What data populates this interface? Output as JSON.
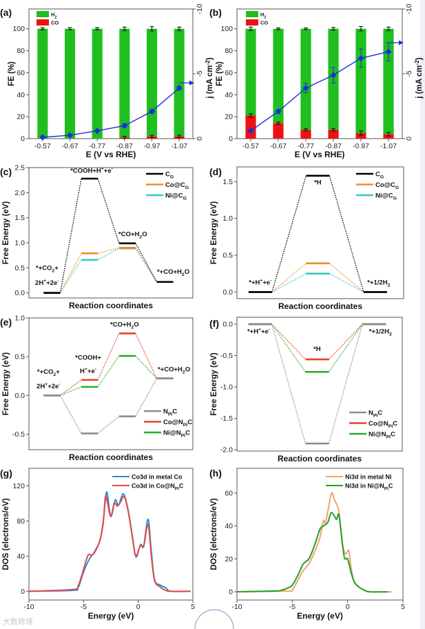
{
  "watermark": "大数跨境",
  "colors": {
    "h2_bar": "#1fbf1f",
    "co_bar": "#ee1111",
    "j_line": "#1a2fe0",
    "cg": "#000000",
    "co_cg": "#f28c28",
    "ni_cg": "#35c9bf",
    "npic": "#8c8c8c",
    "co_npic": "#e8412c",
    "ni_npic": "#22b022",
    "co_metal": "#1e90e0",
    "co_in": "#e84848",
    "ni_metal": "#f4a070",
    "ni_in": "#20a020"
  },
  "chart_data": [
    {
      "panel": "(a)",
      "type": "bar",
      "categories": [
        "-0.57",
        "-0.67",
        "-0.77",
        "-0.87",
        "-0.97",
        "-1.07"
      ],
      "series": [
        {
          "name": "H_{2}",
          "values": [
            100,
            100,
            100,
            99,
            98,
            98
          ],
          "error": [
            1,
            1,
            1,
            1.5,
            2,
            1.5
          ],
          "color_key": "h2_bar"
        },
        {
          "name": "CO",
          "values": [
            0,
            0,
            0,
            1,
            2,
            2
          ],
          "error": [
            0,
            0,
            0,
            1,
            1,
            1
          ],
          "color_key": "co_bar"
        }
      ],
      "line": {
        "name": "j",
        "values": [
          -0.1,
          -0.26,
          -0.6,
          -1.0,
          -2.1,
          -3.9
        ],
        "error": [
          0.1,
          0.1,
          0.1,
          0.15,
          0.15,
          0.15
        ],
        "color_key": "j_line"
      },
      "xlabel": "E (V vs RHE)",
      "ylabel": "FE (%)",
      "y2label": "j (mA cm^{-2})",
      "ylim": [
        0,
        118
      ],
      "yticks": [
        0,
        20,
        40,
        60,
        80,
        100
      ],
      "y2lim": [
        0,
        -10
      ],
      "y2ticks": [
        0,
        -5,
        -10
      ],
      "legend": "top-left"
    },
    {
      "panel": "(b)",
      "type": "bar",
      "categories": [
        "-0.57",
        "-0.67",
        "-0.77",
        "-0.87",
        "-0.97",
        "-1.07"
      ],
      "series": [
        {
          "name": "H_{2}",
          "values": [
            79,
            86,
            92,
            92,
            95,
            96
          ],
          "error": [
            1.5,
            0.8,
            0.8,
            1.2,
            2,
            1.5
          ],
          "color_key": "h2_bar"
        },
        {
          "name": "CO",
          "values": [
            21,
            14,
            8,
            8,
            5,
            4
          ],
          "error": [
            1.5,
            1,
            1,
            1,
            2,
            1.5
          ],
          "color_key": "co_bar"
        }
      ],
      "line": {
        "name": "j",
        "values": [
          -0.6,
          -2.1,
          -3.9,
          -4.9,
          -6.2,
          -6.7
        ],
        "error": [
          0.1,
          0.15,
          0.35,
          0.6,
          0.7,
          0.7
        ],
        "color_key": "j_line"
      },
      "xlabel": "E (V vs RHE)",
      "ylabel": "FE (%)",
      "y2label": "j (mA cm^{-2})",
      "ylim": [
        0,
        118
      ],
      "yticks": [
        0,
        20,
        40,
        60,
        80,
        100
      ],
      "y2lim": [
        0,
        -10
      ],
      "y2ticks": [
        0,
        -5,
        -10
      ],
      "legend": "top-left"
    },
    {
      "panel": "(c)",
      "type": "line",
      "subtype": "free-energy-diagram",
      "series": [
        {
          "name": "C_{G}",
          "values": [
            0,
            2.28,
            0.99,
            0.22
          ],
          "color_key": "cg"
        },
        {
          "name": "Co@C_{G}",
          "values": [
            0,
            0.79,
            0.9,
            0.22
          ],
          "color_key": "co_cg"
        },
        {
          "name": "Ni@C_{G}",
          "values": [
            0,
            0.66,
            0.89,
            0.22
          ],
          "color_key": "ni_cg"
        }
      ],
      "step_labels": [
        [
          "*+CO_{2}+",
          "2H^{+}+2e^{-}"
        ],
        [
          "*COOH+H^{+}+e^{-}"
        ],
        [
          "*CO+H_{2}O"
        ],
        [
          "*+CO+H_{2}O"
        ]
      ],
      "xlabel": "Reaction coordinates",
      "ylabel": "Free Energy (eV)",
      "ylim": [
        -0.1,
        2.5
      ],
      "yticks": [
        "0.0",
        "0.5",
        "1.0",
        "1.5",
        "2.0",
        "2.5"
      ],
      "legend": "top-right"
    },
    {
      "panel": "(d)",
      "type": "line",
      "subtype": "free-energy-diagram",
      "series": [
        {
          "name": "C_{G}",
          "values": [
            0,
            1.58,
            0
          ],
          "color_key": "cg"
        },
        {
          "name": "Co@C_{G}",
          "values": [
            0,
            0.39,
            0
          ],
          "color_key": "co_cg"
        },
        {
          "name": "Ni@C_{G}",
          "values": [
            0,
            0.25,
            0
          ],
          "color_key": "ni_cg"
        }
      ],
      "step_labels": [
        [
          "*+H^{+}+e^{-}"
        ],
        [
          "*H"
        ],
        [
          "*+1/2H_{2}"
        ]
      ],
      "xlabel": "Reaction coordinates",
      "ylabel": "Free Energy (eV)",
      "ylim": [
        -0.09,
        1.7
      ],
      "yticks": [
        "0.0",
        "0.5",
        "1.0",
        "1.5"
      ],
      "legend": "top-right"
    },
    {
      "panel": "(e)",
      "type": "line",
      "subtype": "free-energy-diagram",
      "series": [
        {
          "name": "N_{PI}C",
          "values": [
            0,
            -0.49,
            -0.27,
            0.22
          ],
          "color_key": "npic"
        },
        {
          "name": "Co@N_{PI}C",
          "values": [
            0,
            0.2,
            0.8,
            0.22
          ],
          "color_key": "co_npic"
        },
        {
          "name": "Ni@N_{PI}C",
          "values": [
            0,
            0.11,
            0.51,
            0.22
          ],
          "color_key": "ni_npic"
        }
      ],
      "step_labels": [
        [
          "*+CO_{2}+",
          "2H^{+}+2e^{-}"
        ],
        [
          "*COOH+",
          "H^{+}+e^{-}"
        ],
        [
          "*CO+H_{2}O"
        ],
        [
          "*+CO+H_{2}O"
        ]
      ],
      "xlabel": "Reaction coordinates",
      "ylabel": "Free Energy (eV)",
      "ylim": [
        -0.7,
        1.0
      ],
      "yticks": [
        "-0.5",
        "0.0",
        "0.5",
        "1.0"
      ],
      "legend": "bottom-right"
    },
    {
      "panel": "(f)",
      "type": "line",
      "subtype": "free-energy-diagram",
      "series": [
        {
          "name": "N_{PI}C",
          "values": [
            0,
            -1.9,
            0
          ],
          "color_key": "npic"
        },
        {
          "name": "Co@N_{PI}C",
          "values": [
            0,
            -0.56,
            0
          ],
          "color_key": "co_npic"
        },
        {
          "name": "Ni@N_{PI}C",
          "values": [
            0,
            -0.76,
            0
          ],
          "color_key": "ni_npic"
        }
      ],
      "step_labels": [
        [
          "*+H^{+}+e^{-}"
        ],
        [
          "*H"
        ],
        [
          "*+1/2H_{2}"
        ]
      ],
      "xlabel": "Reaction coordinates",
      "ylabel": "Free Energy (eV)",
      "ylim": [
        -2.02,
        0.11
      ],
      "yticks": [
        "-2.0",
        "-1.5",
        "-1.0",
        "-0.5",
        "0.0"
      ],
      "legend": "bottom-right"
    },
    {
      "panel": "(g)",
      "type": "line",
      "series": [
        {
          "name": "Co3d in metal Co",
          "color_key": "co_metal",
          "x": [
            -10,
            -6,
            -5.5,
            -5,
            -4.5,
            -4,
            -3.5,
            -3.2,
            -2.9,
            -2.6,
            -2.4,
            -2.1,
            -1.8,
            -1.4,
            -1.1,
            -0.8,
            -0.5,
            -0.2,
            0.2,
            0.5,
            0.9,
            1.2,
            1.5,
            2,
            2.5,
            3,
            4.8
          ],
          "y": [
            0,
            1,
            4,
            22,
            36,
            45,
            58,
            80,
            113,
            90,
            88,
            104,
            98,
            111,
            102,
            84,
            60,
            39,
            53,
            52,
            82,
            45,
            13,
            7,
            4,
            0,
            0
          ]
        },
        {
          "name": "Co3d in Co@N_{PI}C",
          "color_key": "co_in",
          "x": [
            -10,
            -6,
            -5.5,
            -5,
            -4.6,
            -4.3,
            -4,
            -3.5,
            -3.2,
            -3,
            -2.8,
            -2.5,
            -2.2,
            -1.9,
            -1.6,
            -1.3,
            -1,
            -0.7,
            -0.4,
            -0.2,
            0.2,
            0.5,
            0.9,
            1.2,
            1.5,
            2,
            2.5,
            3,
            4.7
          ],
          "y": [
            0,
            2,
            6,
            25,
            41,
            41,
            44,
            58,
            78,
            108,
            100,
            85,
            100,
            97,
            102,
            108,
            96,
            75,
            50,
            40,
            52,
            51,
            76,
            40,
            12,
            5,
            1,
            0,
            0
          ]
        }
      ],
      "xlabel": "Energy (eV)",
      "ylabel": "DOS (electrons/eV)",
      "xlim": [
        -10,
        5
      ],
      "xticks": [
        -10,
        -5,
        0,
        5
      ],
      "ylim": [
        -10,
        140
      ],
      "yticks": [
        0,
        40,
        80,
        120
      ],
      "legend": "top-right"
    },
    {
      "panel": "(h)",
      "type": "line",
      "series": [
        {
          "name": "Ni3d in metal Ni",
          "color_key": "ni_metal",
          "x": [
            -10,
            -5.5,
            -5,
            -4.5,
            -4,
            -3.5,
            -3,
            -2.5,
            -2.2,
            -2,
            -1.7,
            -1.45,
            -1.2,
            -0.8,
            -0.5,
            -0.2,
            0.1,
            0.3,
            0.6,
            1,
            1.5,
            2,
            4
          ],
          "y": [
            0,
            0.5,
            1,
            7,
            13,
            17,
            24,
            33,
            43,
            42,
            52,
            60,
            56,
            49,
            30,
            23,
            25,
            15,
            6,
            3,
            1,
            0,
            0
          ]
        },
        {
          "name": "Ni3d in Ni@N_{PI}C",
          "color_key": "ni_in",
          "x": [
            -10,
            -6.5,
            -6,
            -5.5,
            -5,
            -4.5,
            -4,
            -3.5,
            -3,
            -2.5,
            -2.2,
            -1.8,
            -1.5,
            -1.2,
            -1,
            -0.8,
            -0.6,
            -0.3,
            0,
            0.3,
            0.6,
            1,
            1.5,
            2,
            3.6
          ],
          "y": [
            0,
            0.5,
            1,
            2,
            4,
            10,
            17,
            20,
            28,
            38,
            40,
            42,
            48,
            46,
            44,
            47,
            37,
            21,
            20,
            12,
            6,
            3,
            1,
            0,
            0
          ]
        }
      ],
      "xlabel": "Energy (eV)",
      "ylabel": "DOS (electrons/eV)",
      "xlim": [
        -10,
        5
      ],
      "xticks": [
        -10,
        -5,
        0,
        5
      ],
      "ylim": [
        -5,
        75
      ],
      "yticks": [
        0,
        20,
        40,
        60
      ],
      "legend": "top-right"
    }
  ]
}
